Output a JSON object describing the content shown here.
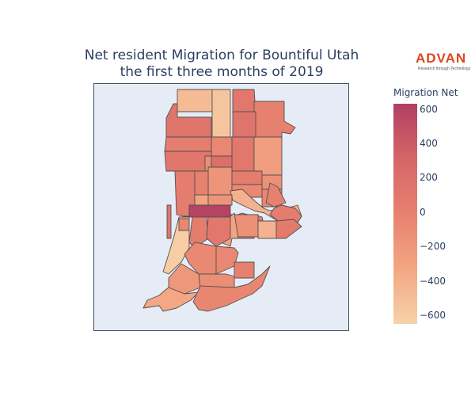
{
  "chart_data": {
    "type": "choropleth",
    "title": "Net resident Migration for Bountiful Utah",
    "subtitle": "the first three months of 2019",
    "colorbar": {
      "title": "Migration Net",
      "range": [
        -650,
        630
      ],
      "ticks": [
        600,
        400,
        200,
        0,
        -200,
        -400,
        -600
      ],
      "tick_labels": [
        "600",
        "400",
        "200",
        "0",
        "−200",
        "−400",
        "−600"
      ],
      "colorscale": [
        "#f6d2a9",
        "#f3a683",
        "#e7816f",
        "#d66568",
        "#b13f64"
      ]
    },
    "regions": [
      {
        "id": "n1",
        "value": -480
      },
      {
        "id": "n2",
        "value": -560
      },
      {
        "id": "n3",
        "value": 100
      },
      {
        "id": "n4",
        "value": 0
      },
      {
        "id": "n5",
        "value": 130
      },
      {
        "id": "n6",
        "value": 140
      },
      {
        "id": "n7",
        "value": -60
      },
      {
        "id": "n8",
        "value": 20
      },
      {
        "id": "n9",
        "value": 100
      },
      {
        "id": "n10",
        "value": -260
      },
      {
        "id": "n11",
        "value": 120
      },
      {
        "id": "n12",
        "value": -120
      },
      {
        "id": "n13",
        "value": 200
      },
      {
        "id": "n14",
        "value": -170
      },
      {
        "id": "n15",
        "value": 40
      },
      {
        "id": "n16",
        "value": -150
      },
      {
        "id": "n17",
        "value": -80
      },
      {
        "id": "n18",
        "value": -50
      },
      {
        "id": "n19",
        "value": -410
      },
      {
        "id": "n20",
        "value": 0
      },
      {
        "id": "n21",
        "value": 40
      },
      {
        "id": "n22",
        "value": -20
      },
      {
        "id": "n23",
        "value": -300
      },
      {
        "id": "n24",
        "value": -180
      },
      {
        "id": "n25",
        "value": 40
      },
      {
        "id": "n26",
        "value": 130
      },
      {
        "id": "n27",
        "value": 600
      },
      {
        "id": "n28",
        "value": 20
      },
      {
        "id": "n29",
        "value": 80
      },
      {
        "id": "n30",
        "value": -140
      },
      {
        "id": "n31",
        "value": -420
      },
      {
        "id": "n32",
        "value": -300
      },
      {
        "id": "n33",
        "value": 60
      },
      {
        "id": "n34",
        "value": -610
      },
      {
        "id": "n35",
        "value": 40
      },
      {
        "id": "n36",
        "value": 90
      },
      {
        "id": "n37",
        "value": -60
      },
      {
        "id": "n38",
        "value": -80
      },
      {
        "id": "n39",
        "value": -200
      },
      {
        "id": "n40",
        "value": -60
      },
      {
        "id": "n41",
        "value": -120
      },
      {
        "id": "n42",
        "value": -10
      },
      {
        "id": "n43",
        "value": -340
      },
      {
        "id": "n44",
        "value": -50
      }
    ]
  },
  "logo": {
    "wordmark": "ADVAN",
    "tagline": "Research through Technology"
  }
}
